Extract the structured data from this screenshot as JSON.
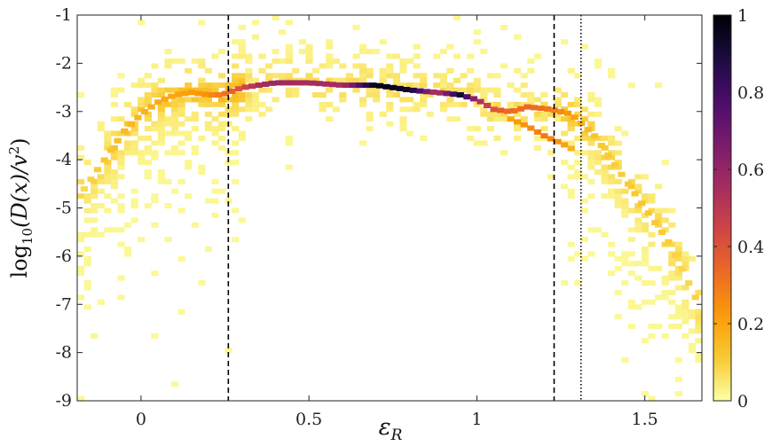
{
  "chart_data": {
    "type": "heatmap",
    "title": "",
    "xlabel_base": "ε",
    "xlabel_sub": "R",
    "ylabel_parts": [
      "log",
      "10",
      "(D(x)/v",
      "2",
      ")"
    ],
    "xlim": [
      -0.19,
      1.67
    ],
    "ylim": [
      -9,
      -1
    ],
    "xticks": [
      0,
      0.5,
      1,
      1.5
    ],
    "xtick_labels": [
      "0",
      "0.5",
      "1",
      "1.5"
    ],
    "yticks": [
      -9,
      -8,
      -7,
      -6,
      -5,
      -4,
      -3,
      -2,
      -1
    ],
    "ytick_labels": [
      "-9",
      "-8",
      "-7",
      "-6",
      "-5",
      "-4",
      "-3",
      "-2",
      "-1"
    ],
    "colorbar": {
      "min": 0,
      "max": 1,
      "ticks": [
        0,
        0.2,
        0.4,
        0.6,
        0.8,
        1
      ],
      "tick_labels": [
        "0",
        "0.2",
        "0.4",
        "0.6",
        "0.8",
        "1"
      ],
      "colormap": "inferno-reversed",
      "stops": [
        "#fcffa4",
        "#f8c932",
        "#fb9b06",
        "#ed6925",
        "#cf4446",
        "#a52c60",
        "#781c6d",
        "#4a0c6b",
        "#1b0c41",
        "#000004"
      ]
    },
    "vlines": [
      {
        "x": 0.26,
        "style": "dashed"
      },
      {
        "x": 1.23,
        "style": "dashed"
      },
      {
        "x": 1.31,
        "style": "dotted"
      }
    ],
    "ridge": [
      {
        "x": -0.17,
        "y": -4.6,
        "v": 0.08
      },
      {
        "x": -0.1,
        "y": -3.9,
        "v": 0.12
      },
      {
        "x": -0.05,
        "y": -3.4,
        "v": 0.15
      },
      {
        "x": 0.0,
        "y": -3.05,
        "v": 0.16
      },
      {
        "x": 0.05,
        "y": -2.8,
        "v": 0.18
      },
      {
        "x": 0.1,
        "y": -2.65,
        "v": 0.2
      },
      {
        "x": 0.15,
        "y": -2.6,
        "v": 0.22
      },
      {
        "x": 0.2,
        "y": -2.65,
        "v": 0.25
      },
      {
        "x": 0.24,
        "y": -2.65,
        "v": 0.3
      },
      {
        "x": 0.3,
        "y": -2.5,
        "v": 0.42
      },
      {
        "x": 0.35,
        "y": -2.45,
        "v": 0.55
      },
      {
        "x": 0.4,
        "y": -2.4,
        "v": 0.58
      },
      {
        "x": 0.5,
        "y": -2.4,
        "v": 0.55
      },
      {
        "x": 0.6,
        "y": -2.45,
        "v": 0.55
      },
      {
        "x": 0.7,
        "y": -2.45,
        "v": 0.98
      },
      {
        "x": 0.8,
        "y": -2.55,
        "v": 0.92
      },
      {
        "x": 0.88,
        "y": -2.6,
        "v": 0.5
      },
      {
        "x": 0.95,
        "y": -2.65,
        "v": 0.92
      },
      {
        "x": 1.0,
        "y": -2.75,
        "v": 0.55
      },
      {
        "x": 1.05,
        "y": -2.95,
        "v": 0.4
      },
      {
        "x": 1.1,
        "y": -3.0,
        "v": 0.32
      },
      {
        "x": 1.15,
        "y": -2.9,
        "v": 0.34
      },
      {
        "x": 1.22,
        "y": -2.95,
        "v": 0.3
      },
      {
        "x": 1.28,
        "y": -3.05,
        "v": 0.22
      },
      {
        "x": 1.35,
        "y": -3.5,
        "v": 0.12
      },
      {
        "x": 1.42,
        "y": -4.2,
        "v": 0.1
      },
      {
        "x": 1.5,
        "y": -5.0,
        "v": 0.12
      },
      {
        "x": 1.57,
        "y": -5.7,
        "v": 0.1
      },
      {
        "x": 1.62,
        "y": -6.4,
        "v": 0.08
      },
      {
        "x": 1.66,
        "y": -7.0,
        "v": 0.1
      }
    ],
    "lower_branch": [
      {
        "x": 1.1,
        "y": -3.15,
        "v": 0.2
      },
      {
        "x": 1.15,
        "y": -3.3,
        "v": 0.25
      },
      {
        "x": 1.2,
        "y": -3.5,
        "v": 0.3
      },
      {
        "x": 1.25,
        "y": -3.65,
        "v": 0.22
      },
      {
        "x": 1.29,
        "y": -3.8,
        "v": 0.15
      }
    ]
  }
}
